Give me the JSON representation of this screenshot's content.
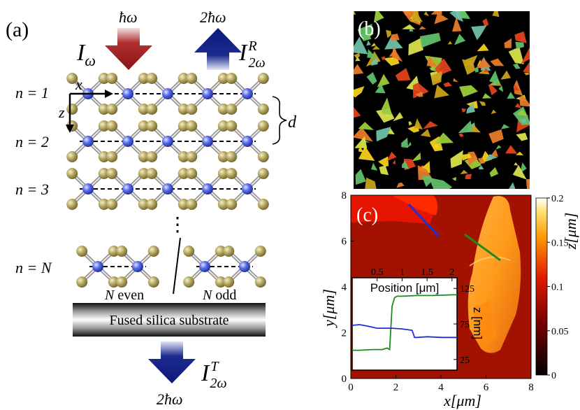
{
  "panel_a": {
    "label": "(a)",
    "incident_photon": "ħω",
    "incident_intensity": "I",
    "incident_sub": "ω",
    "reflected_photon": "2ħω",
    "reflected_intensity": "I",
    "reflected_sub": "2ω",
    "reflected_sup": "R",
    "transmitted_photon": "2ħω",
    "transmitted_intensity": "I",
    "transmitted_sub": "2ω",
    "transmitted_sup": "T",
    "axis_x": "x",
    "axis_z": "z",
    "spacing_label": "d",
    "layers": [
      "n = 1",
      "n = 2",
      "n = 3",
      "n = N"
    ],
    "ellipsis": "⋮",
    "n_even_label": "N even",
    "n_odd_label": "N odd",
    "substrate_label": "Fused silica substrate",
    "colors": {
      "red_arrow": "#9b1d1d",
      "blue_arrow": "#0b1a7a",
      "metal_atom": "#5a6ee8",
      "chalcogen_atom": "#b4a65e"
    }
  },
  "panel_b": {
    "label": "(b)"
  },
  "panel_c": {
    "label": "(c)",
    "xlabel": "x[μm]",
    "ylabel": "y[μm]",
    "x_ticks": [
      "0",
      "2",
      "4",
      "6",
      "8"
    ],
    "y_ticks": [
      "0",
      "2",
      "4",
      "6",
      "8"
    ],
    "colorbar_label": "z[μm]",
    "colorbar_ticks": [
      "0",
      "0.05",
      "0.1",
      "0.15",
      "0.2"
    ],
    "inset": {
      "xlabel": "Position [μm]",
      "ylabel": "z [nm]",
      "x_ticks": [
        "0.5",
        "1",
        "1.5",
        "2"
      ],
      "y_ticks": [
        "125",
        "75",
        "25"
      ]
    }
  },
  "chart_data": {
    "type": "line",
    "xlabel": "Position [μm]",
    "ylabel": "z [nm]",
    "xlim": [
      0,
      2.1
    ],
    "ylim": [
      10,
      140
    ],
    "series": [
      {
        "color": "#1f8a1f",
        "x": [
          0,
          0.15,
          0.4,
          0.6,
          0.7,
          0.75,
          0.8,
          0.85,
          0.9,
          1.0,
          1.3,
          1.6,
          2.0,
          2.1
        ],
        "y": [
          38,
          38,
          39,
          39,
          41,
          39,
          100,
          112,
          114,
          114,
          115,
          115,
          116,
          116
        ]
      },
      {
        "color": "#1f2fd8",
        "x": [
          0,
          0.15,
          0.3,
          0.5,
          0.8,
          1.0,
          1.1,
          1.2,
          1.25,
          1.3,
          1.5,
          1.8,
          2.1
        ],
        "y": [
          73,
          74,
          72,
          69,
          69,
          68,
          67,
          66,
          56,
          56,
          57,
          56,
          56
        ]
      }
    ]
  }
}
